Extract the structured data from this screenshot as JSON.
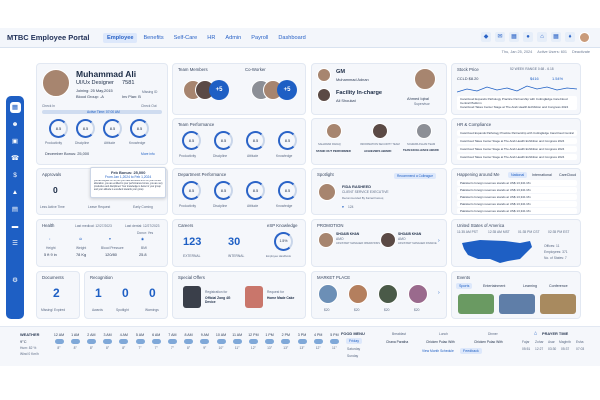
{
  "colors": {
    "accent": "#1e5fc4",
    "link": "#2a63c7",
    "background": "#f5f7fb"
  },
  "app": {
    "title": "MTBC Employee Portal"
  },
  "nav": {
    "items": [
      "Employee",
      "Benefits",
      "Self-Care",
      "HR",
      "Admin",
      "Payroll",
      "Dashboard"
    ],
    "active": "Employee"
  },
  "topbar": {
    "icons": [
      "badge-icon",
      "chat-icon",
      "calendar-icon",
      "user-icon",
      "home-icon",
      "grid-icon",
      "bell-icon"
    ],
    "date": "Thu, Jan 25, 2024",
    "active_users": "Active Users: 601",
    "logout": "Deactivate"
  },
  "sidebar": {
    "icons": [
      "grid-icon",
      "user-icon",
      "monitor-icon",
      "phone-icon",
      "dollar-icon",
      "chart-icon",
      "calendar-icon",
      "card-icon",
      "report-icon",
      "settings-icon"
    ]
  },
  "profile": {
    "name": "Muhammad Ali",
    "role": "UI/Ux Designer",
    "id": "7581",
    "joining": "Joining: 25 May,2015",
    "blood": "Blood Group: -A",
    "inrm": "Inv Plan: B",
    "badge": "Missing ID",
    "check_in": "Check In",
    "check_out": "Check Out",
    "active_time": "Active Time: 07:00 AM"
  },
  "performance_rings": {
    "labels": [
      "Productivity",
      "Discipline",
      "Attitude",
      "Knowledge"
    ],
    "values": [
      "8.5",
      "8.5",
      "8.5",
      "8.5"
    ]
  },
  "bonus": {
    "label": "December Bonus: 25,000",
    "more": "More info"
  },
  "team_members": {
    "title": "Team Members",
    "count": "+5"
  },
  "coworker": {
    "title": "Co-Worker",
    "count": "+5"
  },
  "managers": {
    "gm_title": "GM",
    "gm_name": "Muhammad Adnan",
    "incharge_title": "Facility In-charge",
    "incharge_name": "Ali Shoukat",
    "supervisor_name": "Ahmed Iqbal",
    "supervisor_title": "Supervisor"
  },
  "team_performance": {
    "title": "Team Performance"
  },
  "awards": {
    "items": [
      {
        "name": "SAHARIAR RAFAQ",
        "caption": "STAND OUT PERFORMER"
      },
      {
        "name": "INFORMATION SECURITY TEAM",
        "caption": "ACHIEVERS AWARD"
      },
      {
        "name": "SOHRAB ASLAM TEAM",
        "caption": "TEAM EXCELLENCE AWARD"
      }
    ]
  },
  "stock": {
    "title": "Stock Price",
    "range": "52 WEEK RANGE 0.68 - 6.18",
    "symbol": "CCLD $8.20",
    "change": "$416",
    "pct": "1.54%"
  },
  "stock_news": [
    "CareCloud Expands Pathology Practice Partnership with CuttingEdge CareCloud Central Platform",
    "CareCloud Takes Center Stage at The Arab Health Exhibition and Congress 2024"
  ],
  "hr_compliance": {
    "title": "HR & Compliance",
    "items": [
      "CareCloud Expands Pathology Practice Partnership with CuttingEdge CareCloud Central",
      "CareCloud Takes Center Stage at The Arab Health Exhibition and Congress 2024",
      "CareCloud Takes Center Stage at The Arab Health Exhibition and Congress 2024",
      "CareCloud Takes Center Stage at The Arab Health Exhibition and Congress 2024"
    ]
  },
  "approvals": {
    "title": "Approvals",
    "values": [
      "0",
      "0",
      "0"
    ],
    "labels": [
      "Less Active Time",
      "Leave Request",
      "Early Coming"
    ]
  },
  "tooltip": {
    "title": "Feb Bonus: 25,000",
    "from": "From Jan 1,2024 to Feb 1,2024",
    "text": "you are eligible for 30,000 you have achieved 85% for your bonus allocation, you are entitled to your performance bonus, you are very productive and disciplined. Your knowledge is better in your group and your attitude is excellent towards your group"
  },
  "department_performance": {
    "title": "Department Performance"
  },
  "spotlight": {
    "title": "Spotlight",
    "action": "Recommend a Colleague",
    "name": "FIDA RASHEED",
    "role": "CLIENT SERVICE EXECUTIVE",
    "desc": "Recommended By Kainat Farooq",
    "likes": "124"
  },
  "happening": {
    "title": "Happening around Me",
    "tabs": [
      "National",
      "International",
      "CareCloud"
    ],
    "items": [
      "Pakistan's foreign reserves stands at US$ 13,341 Mn",
      "Pakistan's foreign reserves stands at US$ 13,341 Mn",
      "Pakistan's foreign reserves stands at US$ 13,341 Mn",
      "Pakistan's foreign reserves stands at US$ 13,341 Mn",
      "Pakistan's foreign reserves stands at US$ 13,341 Mn"
    ]
  },
  "health": {
    "title": "Health",
    "last_medical": "Last medical: 12/27/2023",
    "last_dental": "Last dental: 12/27/2023",
    "donor": "Donor: Yes",
    "labels": [
      "Height",
      "Weight",
      "Blood Pressure",
      "BMI"
    ],
    "values": [
      "5 ft 9 in",
      "78 Kg",
      "120/80",
      "25.8"
    ]
  },
  "careers": {
    "title": "Careers",
    "external": "123",
    "internal": "30",
    "external_label": "EXTERNAL",
    "internal_label": "INTERNAL"
  },
  "esop": {
    "title": "eSP Knowledge",
    "label": "Employee Handbook",
    "value": "1.5%"
  },
  "promotion": {
    "title": "PROMOTION",
    "people": [
      {
        "name": "SHOAIB KHAN",
        "role": "AMO",
        "desc": "ASSISTANT MANAGER OPERATIONS"
      },
      {
        "name": "SHOAIB KHAN",
        "role": "AMO",
        "desc": "ASSISTANT MANAGER FINANCE"
      }
    ]
  },
  "us_map": {
    "title": "United States of America",
    "times": [
      "11:35 AM PST",
      "12:35 AM MST",
      "01:35 PM CST",
      "02:35 PM EST"
    ],
    "offices": "Offices: 11",
    "employees": "Employees: 371",
    "states": "No. of States: 7"
  },
  "documents": {
    "title": "Documents",
    "value": "2",
    "label": "Missing/ Expired"
  },
  "recognition": {
    "title": "Recognition",
    "values": [
      "1",
      "0",
      "0"
    ],
    "labels": [
      "Awards",
      "Spotlight",
      "Warnings"
    ]
  },
  "special_offers": {
    "title": "Special Offers",
    "items": [
      {
        "caption": "Registration for",
        "name": "Official Zong 4G Device"
      },
      {
        "caption": "Request for",
        "name": "Home Made Cake"
      }
    ]
  },
  "market": {
    "title": "MARKET PLACE",
    "prices": [
      "$20",
      "$20",
      "$20",
      "$20"
    ]
  },
  "events": {
    "title": "Events",
    "tabs": [
      "Sports",
      "Entertainment",
      "Learning",
      "Conference"
    ]
  },
  "weather": {
    "title": "WEATHER",
    "temp": "9°C",
    "humidity": "Hum: 82 %",
    "wind": "Wind 0 Km/h",
    "hours": [
      "12 AM",
      "1 AM",
      "2 AM",
      "3 AM",
      "4 AM",
      "5 AM",
      "6 AM",
      "7 AM",
      "8 AM",
      "9 AM",
      "10 AM",
      "11 AM",
      "12 PM",
      "1 PM",
      "2 PM",
      "3 PM",
      "4 PM",
      "5 PM"
    ],
    "temps": [
      "8°",
      "8°",
      "8°",
      "8°",
      "8°",
      "7°",
      "7°",
      "7°",
      "8°",
      "9°",
      "10°",
      "11°",
      "12°",
      "13°",
      "13°",
      "13°",
      "12°",
      "11°"
    ]
  },
  "food_menu": {
    "title": "FOOD MENU",
    "days": [
      "Friday",
      "Saturday",
      "Sunday"
    ],
    "meals": [
      "Breakfast",
      "Lunch",
      "Dinner"
    ],
    "items": [
      "Chana Paratha",
      "Chicken Pulao With",
      "Chicken Pulao With"
    ],
    "view_schedule": "View Month Schedule",
    "feedback": "Feedback"
  },
  "prayer": {
    "title": "PRAYER TIME",
    "names": [
      "Fajar",
      "Zohar",
      "Asar",
      "Maghrib",
      "Esha"
    ],
    "times": [
      "05:51",
      "12:27",
      "03:30",
      "05:37",
      "07:03"
    ]
  }
}
